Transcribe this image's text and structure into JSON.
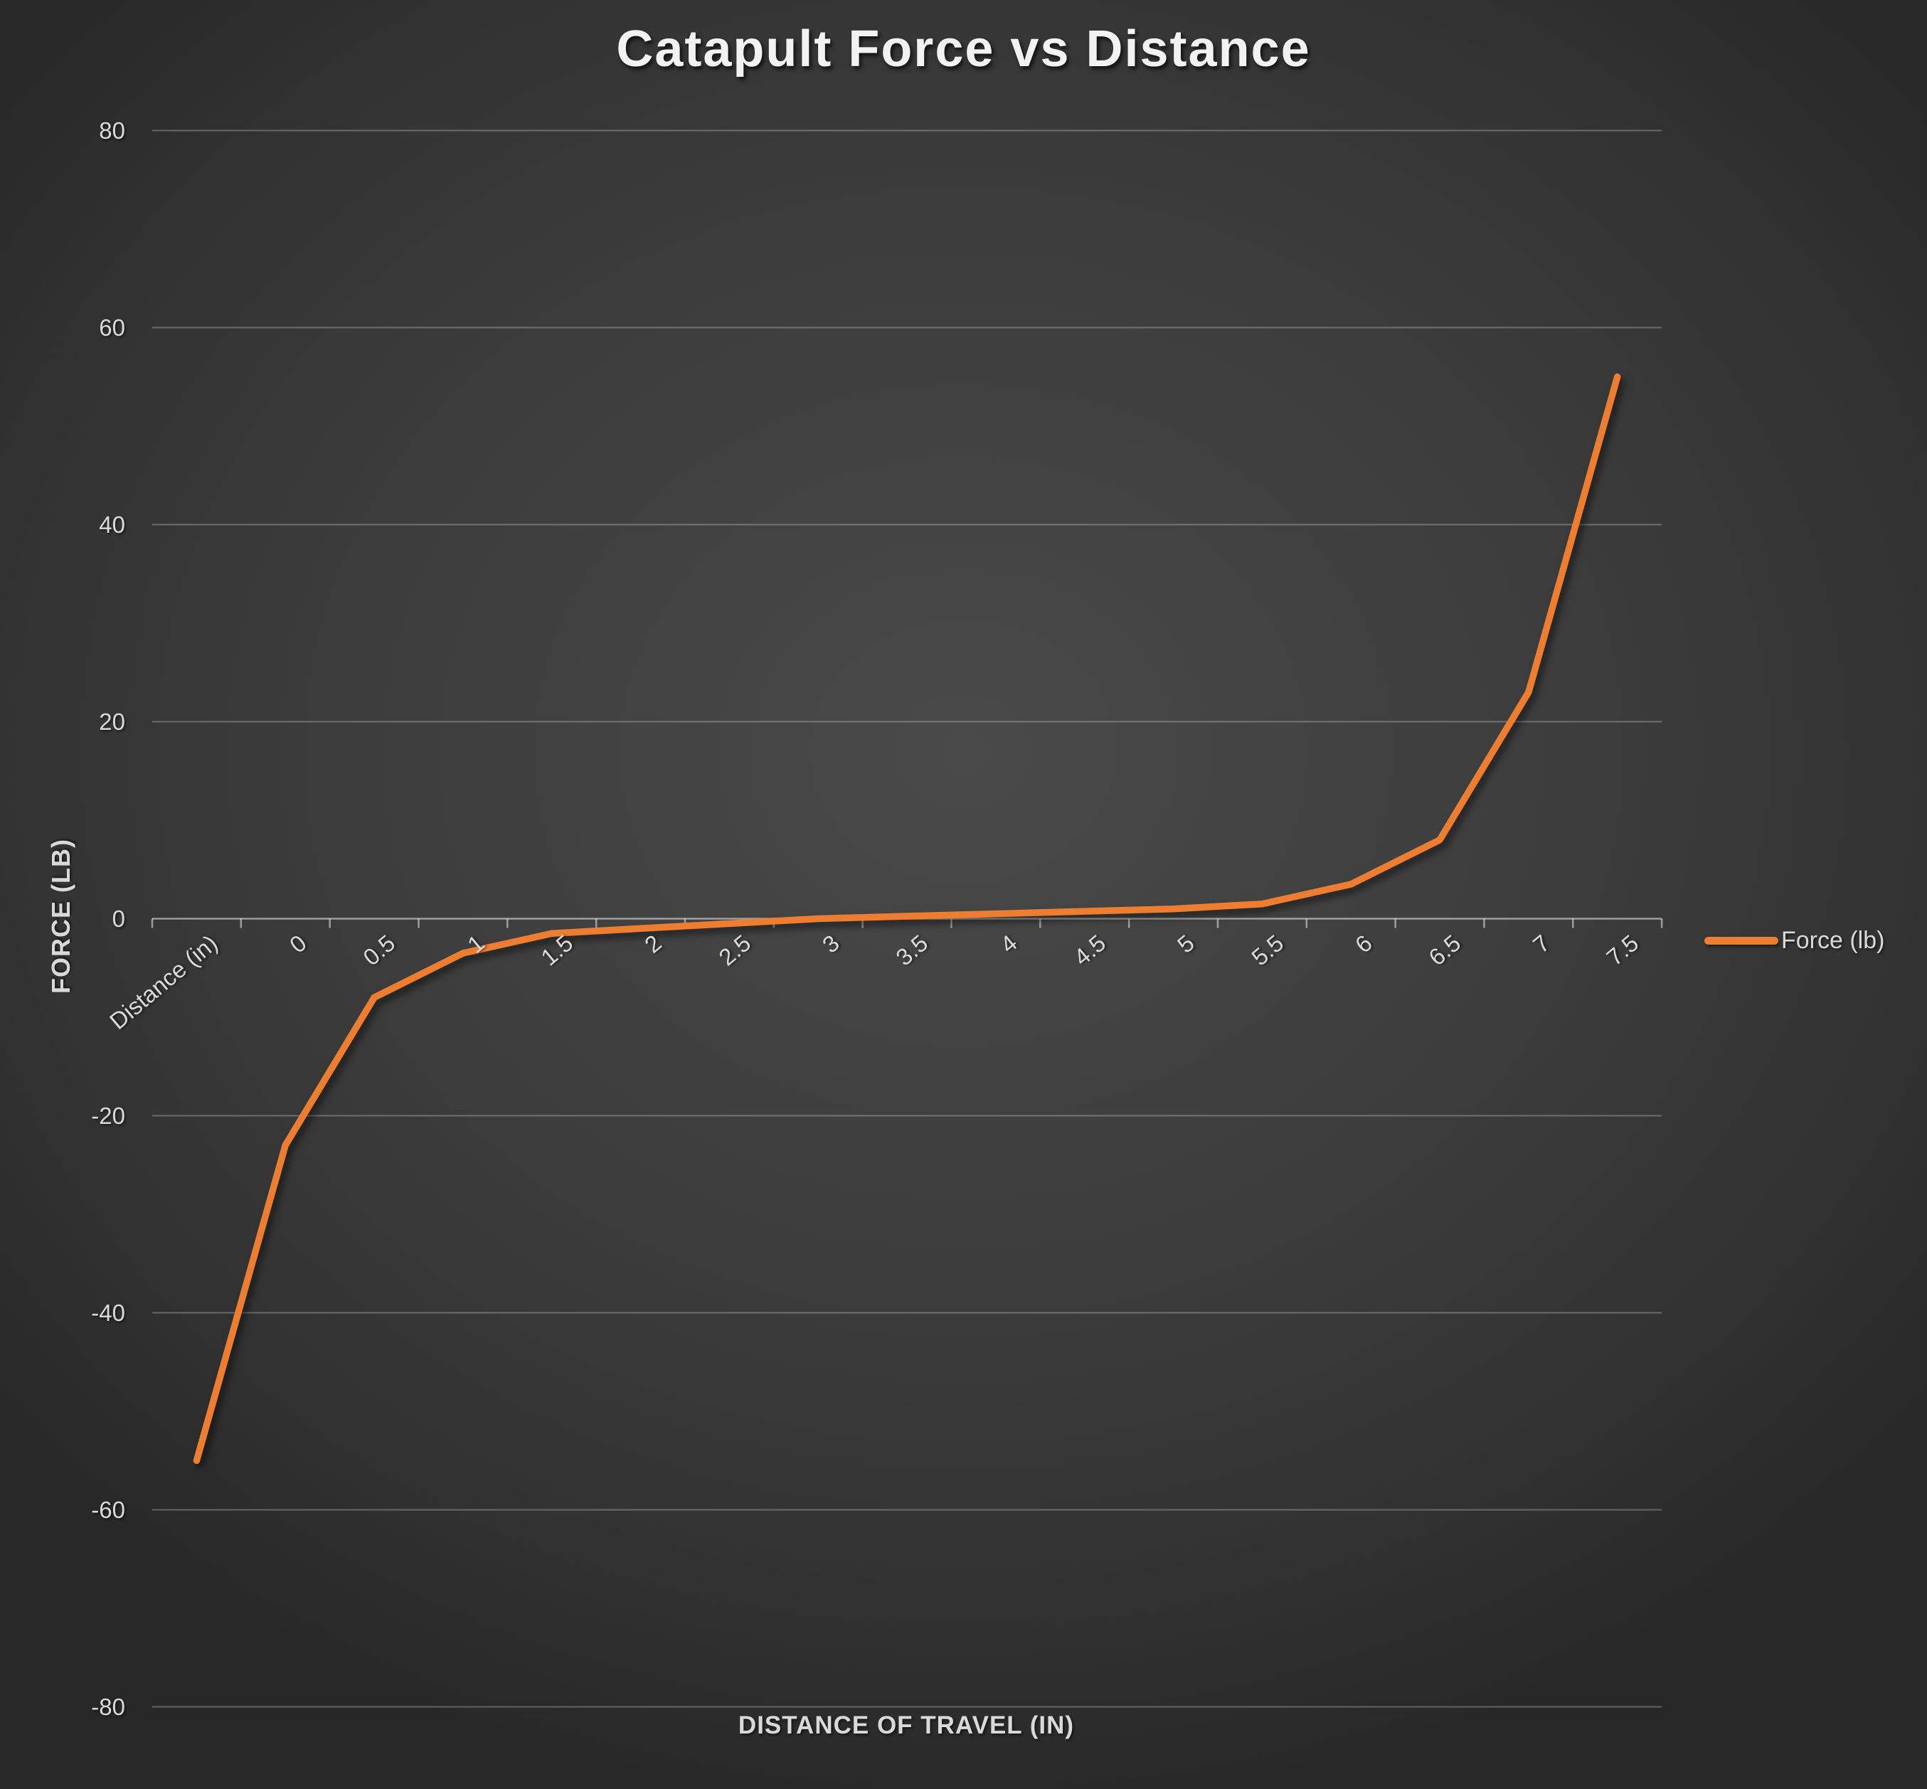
{
  "title": "Catapult Force vs Distance",
  "y_axis": {
    "title": "FORCE (LB)"
  },
  "x_axis": {
    "title": "DISTANCE OF TRAVEL (IN)"
  },
  "legend": {
    "label": "Force (lb)"
  },
  "colors": {
    "series": "#ED7D31",
    "tick_text": "#D9D9D9",
    "title_text": "#F2F2F2",
    "gridline": "rgba(255,255,255,0.27)",
    "axis_line": "rgba(255,255,255,0.50)"
  },
  "chart_data": {
    "type": "line",
    "title": "Catapult Force vs Distance",
    "xlabel": "DISTANCE OF TRAVEL (IN)",
    "ylabel": "FORCE (LB)",
    "categories": [
      "Distance (in)",
      "0",
      "0.5",
      "1",
      "1.5",
      "2",
      "2.5",
      "3",
      "3.5",
      "4",
      "4.5",
      "5",
      "5.5",
      "6",
      "6.5",
      "7",
      "7.5"
    ],
    "series": [
      {
        "name": "Force (lb)",
        "values": [
          -55,
          -23,
          -8,
          -3.5,
          -1.5,
          -1,
          -0.5,
          0,
          0.25,
          0.5,
          0.75,
          1,
          1.5,
          3.5,
          8,
          23,
          55
        ]
      }
    ],
    "ylim": [
      -80,
      80
    ],
    "yticks": [
      80,
      60,
      40,
      20,
      0,
      -20,
      -40,
      -60,
      -80
    ],
    "grid": true,
    "legend_position": "right",
    "x_tick_rotation": -40
  }
}
